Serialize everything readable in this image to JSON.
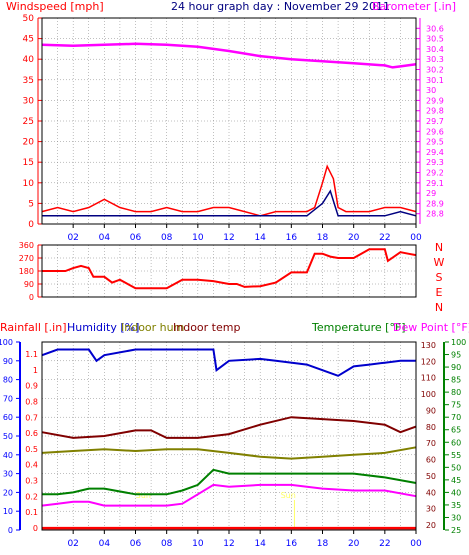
{
  "header": {
    "left_title": "Windspeed [mph]",
    "center_title": "24 hour graph day : November 29 2011",
    "right_title": "Barometer [.in]"
  },
  "colors": {
    "background": "#ffffff",
    "wind": "#ff0000",
    "wind_avg": "#000080",
    "barometer": "#ff00ff",
    "direction": "#ff0000",
    "rainfall": "#ff0000",
    "humidity": "#0000cc",
    "indoor_hum": "#808000",
    "indoor_temp": "#800000",
    "temperature": "#008000",
    "dewpoint": "#ff00ff",
    "sun": "#ffff66",
    "axis_left": "#0000ff",
    "axis_temp": "#008000",
    "grid": "#808080"
  },
  "chart_data": [
    {
      "type": "line",
      "title": "24 hour graph day : November 29 2011",
      "xlabel": "",
      "x_ticks": [
        "02",
        "04",
        "06",
        "08",
        "10",
        "12",
        "14",
        "16",
        "18",
        "20",
        "22",
        "00"
      ],
      "xlim": [
        0,
        24
      ],
      "left_axis": {
        "label": "Windspeed [mph]",
        "ylim": [
          0,
          50
        ],
        "ticks": [
          0,
          5,
          10,
          15,
          20,
          25,
          30,
          35,
          40,
          45,
          50
        ]
      },
      "right_axis": {
        "label": "Barometer [.in]",
        "ylim": [
          28.7,
          30.7
        ],
        "ticks": [
          "28.8",
          "28.9",
          "29",
          "29.1",
          "29.2",
          "29.3",
          "29.4",
          "29.5",
          "29.6",
          "29.7",
          "29.8",
          "29.9",
          "30",
          "30.1",
          "30.2",
          "30.3",
          "30.4",
          "30.5",
          "30.6"
        ]
      },
      "grid": true,
      "series": [
        {
          "name": "Windspeed [mph]",
          "axis": "left",
          "x": [
            0,
            1,
            2,
            3,
            4,
            5,
            6,
            7,
            8,
            9,
            10,
            11,
            12,
            13,
            14,
            15,
            16,
            17,
            17.5,
            18,
            18.3,
            18.7,
            19,
            19.5,
            20,
            21,
            22,
            23,
            24
          ],
          "values": [
            3,
            4,
            3,
            4,
            6,
            4,
            3,
            3,
            4,
            3,
            3,
            4,
            4,
            3,
            2,
            3,
            3,
            3,
            4,
            10,
            14,
            11,
            4,
            3,
            3,
            3,
            4,
            4,
            3
          ]
        },
        {
          "name": "Wind average",
          "axis": "left",
          "x": [
            0,
            2,
            4,
            6,
            8,
            10,
            12,
            14,
            16,
            17,
            18,
            18.5,
            19,
            20,
            22,
            23,
            24
          ],
          "values": [
            2,
            2,
            2,
            2,
            2,
            2,
            2,
            2,
            2,
            2,
            5,
            8,
            2,
            2,
            2,
            3,
            2
          ]
        },
        {
          "name": "Barometer [.in]",
          "axis": "right",
          "x": [
            0,
            2,
            4,
            6,
            8,
            10,
            12,
            14,
            16,
            18,
            20,
            22,
            22.5,
            23,
            24
          ],
          "values": [
            30.44,
            30.43,
            30.44,
            30.45,
            30.44,
            30.42,
            30.38,
            30.33,
            30.3,
            30.28,
            30.26,
            30.24,
            30.22,
            30.23,
            30.25
          ]
        }
      ]
    },
    {
      "type": "line",
      "title": "",
      "x_ticks": [
        "02",
        "04",
        "06",
        "08",
        "10",
        "12",
        "14",
        "16",
        "18",
        "20",
        "22",
        "00"
      ],
      "xlim": [
        0,
        24
      ],
      "left_axis": {
        "ylim": [
          0,
          360
        ],
        "ticks": [
          0,
          90,
          180,
          270,
          360
        ]
      },
      "right_axis": {
        "ticks": [
          "N",
          "W",
          "S",
          "E",
          "N"
        ]
      },
      "grid": true,
      "series": [
        {
          "name": "Wind direction",
          "x": [
            0,
            1.5,
            2,
            2.5,
            3,
            3.3,
            4,
            4.5,
            5,
            6,
            7,
            8,
            9,
            10,
            11,
            12,
            12.5,
            13,
            14,
            15,
            16,
            17,
            17.5,
            18,
            18.5,
            19,
            20,
            21,
            22,
            22.2,
            23,
            23.5,
            24
          ],
          "values": [
            180,
            180,
            200,
            215,
            200,
            140,
            140,
            100,
            120,
            60,
            60,
            60,
            120,
            120,
            110,
            90,
            90,
            70,
            75,
            100,
            170,
            170,
            300,
            300,
            280,
            270,
            270,
            330,
            330,
            250,
            310,
            300,
            290
          ]
        }
      ]
    },
    {
      "type": "line",
      "title": "",
      "x_ticks": [
        "02",
        "04",
        "06",
        "08",
        "10",
        "12",
        "14",
        "16",
        "18",
        "20",
        "22",
        "00"
      ],
      "xlim": [
        0,
        24
      ],
      "axes": {
        "rainfall": {
          "label": "Rainfall [.in]",
          "ticks": [
            "0",
            "0.1",
            "0.2",
            "0.3",
            "0.4",
            "0.5",
            "0.6",
            "0.7",
            "0.8",
            "0.9",
            "1",
            "1.1"
          ]
        },
        "humidity": {
          "label": "Humidity [%]",
          "ylim": [
            0,
            100
          ],
          "ticks": [
            0,
            10,
            20,
            30,
            40,
            50,
            60,
            70,
            80,
            90,
            100
          ]
        },
        "indoor_temp": {
          "label": "Indoor temp",
          "ticks": [
            20,
            30,
            40,
            50,
            60,
            70,
            80,
            90,
            100,
            110,
            120,
            130
          ]
        },
        "temperature": {
          "label": "Temperature [°F]",
          "ylim": [
            25,
            100
          ],
          "ticks": [
            25,
            30,
            35,
            40,
            45,
            50,
            55,
            60,
            65,
            70,
            75,
            80,
            85,
            90,
            95,
            100
          ]
        }
      },
      "legend": [
        "Rainfall [.in]",
        "Humidity [%]",
        "Indoor hum",
        "Indoor temp",
        "Temperature [°F]",
        "Dew Point [°F]"
      ],
      "annotations": [
        "Sun",
        "Sun"
      ],
      "grid": true,
      "series": [
        {
          "name": "Rainfall [.in]",
          "axis": "humidity",
          "x": [
            0,
            24
          ],
          "values": [
            1,
            1
          ]
        },
        {
          "name": "Humidity [%]",
          "axis": "humidity",
          "x": [
            0,
            1,
            2,
            3,
            3.5,
            4,
            6,
            8,
            10,
            11,
            11.2,
            12,
            14,
            15,
            17,
            18,
            19,
            20,
            21,
            22,
            23,
            24
          ],
          "values": [
            93,
            96,
            96,
            96,
            90,
            93,
            96,
            96,
            96,
            96,
            85,
            90,
            91,
            90,
            88,
            85,
            82,
            87,
            88,
            89,
            90,
            90
          ]
        },
        {
          "name": "Indoor hum",
          "axis": "humidity",
          "x": [
            0,
            2,
            4,
            6,
            8,
            10,
            12,
            14,
            16,
            18,
            20,
            22,
            24
          ],
          "values": [
            41,
            42,
            43,
            42,
            43,
            43,
            41,
            39,
            38,
            39,
            40,
            41,
            44
          ]
        },
        {
          "name": "Indoor temp",
          "axis": "humidity",
          "x": [
            0,
            2,
            4,
            6,
            7,
            8,
            10,
            12,
            14,
            16,
            18,
            20,
            22,
            23,
            24
          ],
          "values": [
            52,
            49,
            50,
            53,
            53,
            49,
            49,
            51,
            56,
            60,
            59,
            58,
            56,
            52,
            55
          ]
        },
        {
          "name": "Temperature [°F]",
          "axis": "humidity",
          "x": [
            0,
            1,
            2,
            3,
            4,
            6,
            8,
            9,
            10,
            11,
            12,
            14,
            16,
            18,
            20,
            22,
            24
          ],
          "values": [
            19,
            19,
            20,
            22,
            22,
            19,
            19,
            21,
            24,
            32,
            30,
            30,
            30,
            30,
            30,
            28,
            25
          ]
        },
        {
          "name": "Dew Point [°F]",
          "axis": "humidity",
          "x": [
            0,
            1,
            2,
            3,
            4,
            6,
            8,
            9,
            10,
            11,
            12,
            14,
            16,
            18,
            20,
            22,
            24
          ],
          "values": [
            13,
            14,
            15,
            15,
            13,
            13,
            13,
            14,
            19,
            24,
            23,
            24,
            24,
            22,
            21,
            21,
            18
          ]
        }
      ]
    }
  ]
}
